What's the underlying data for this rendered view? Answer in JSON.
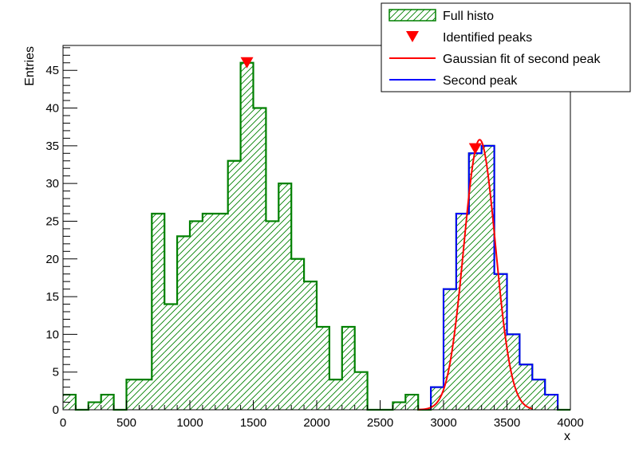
{
  "chart_data": {
    "type": "bar",
    "title": "",
    "xlabel": "x",
    "ylabel": "Entries",
    "xlim": [
      0,
      4000
    ],
    "ylim": [
      0,
      48.3
    ],
    "xticks": [
      0,
      500,
      1000,
      1500,
      2000,
      2500,
      3000,
      3500,
      4000
    ],
    "yticks": [
      0,
      5,
      10,
      15,
      20,
      25,
      30,
      35,
      40,
      45
    ],
    "grid": false,
    "legend_position": "top-right",
    "legend": [
      {
        "label": "Full histo",
        "style": "hatched-fill",
        "color": "#008000"
      },
      {
        "label": "Identified peaks",
        "style": "marker",
        "color": "#ff0000"
      },
      {
        "label": "Gaussian fit of second peak",
        "style": "line",
        "color": "#ff0000"
      },
      {
        "label": "Second peak",
        "style": "line",
        "color": "#0000ff"
      }
    ],
    "series": [
      {
        "name": "Full histo",
        "color": "#008000",
        "bin_width": 100,
        "bin_start": 0,
        "values": [
          2,
          0,
          1,
          2,
          0,
          4,
          4,
          26,
          14,
          23,
          25,
          26,
          26,
          33,
          46,
          40,
          25,
          30,
          20,
          17,
          11,
          4,
          11,
          5,
          0,
          0,
          1,
          2,
          0,
          3,
          16,
          26,
          34,
          35,
          18,
          10,
          6,
          4,
          2,
          0
        ]
      },
      {
        "name": "Second peak",
        "color": "#0000ff",
        "bin_width": 100,
        "bin_start": 2900,
        "values": [
          3,
          16,
          26,
          34,
          35,
          18,
          10,
          6,
          4,
          2
        ]
      },
      {
        "name": "Gaussian fit of second peak",
        "color": "#ff0000",
        "type": "function",
        "function": "gaussian",
        "amplitude": 35.8,
        "mean": 3285,
        "sigma": 125,
        "x_range": [
          2800,
          3700
        ]
      },
      {
        "name": "Identified peaks",
        "color": "#ff0000",
        "type": "markers",
        "x": [
          1450,
          3250
        ],
        "y": [
          46,
          34.6
        ]
      }
    ]
  }
}
